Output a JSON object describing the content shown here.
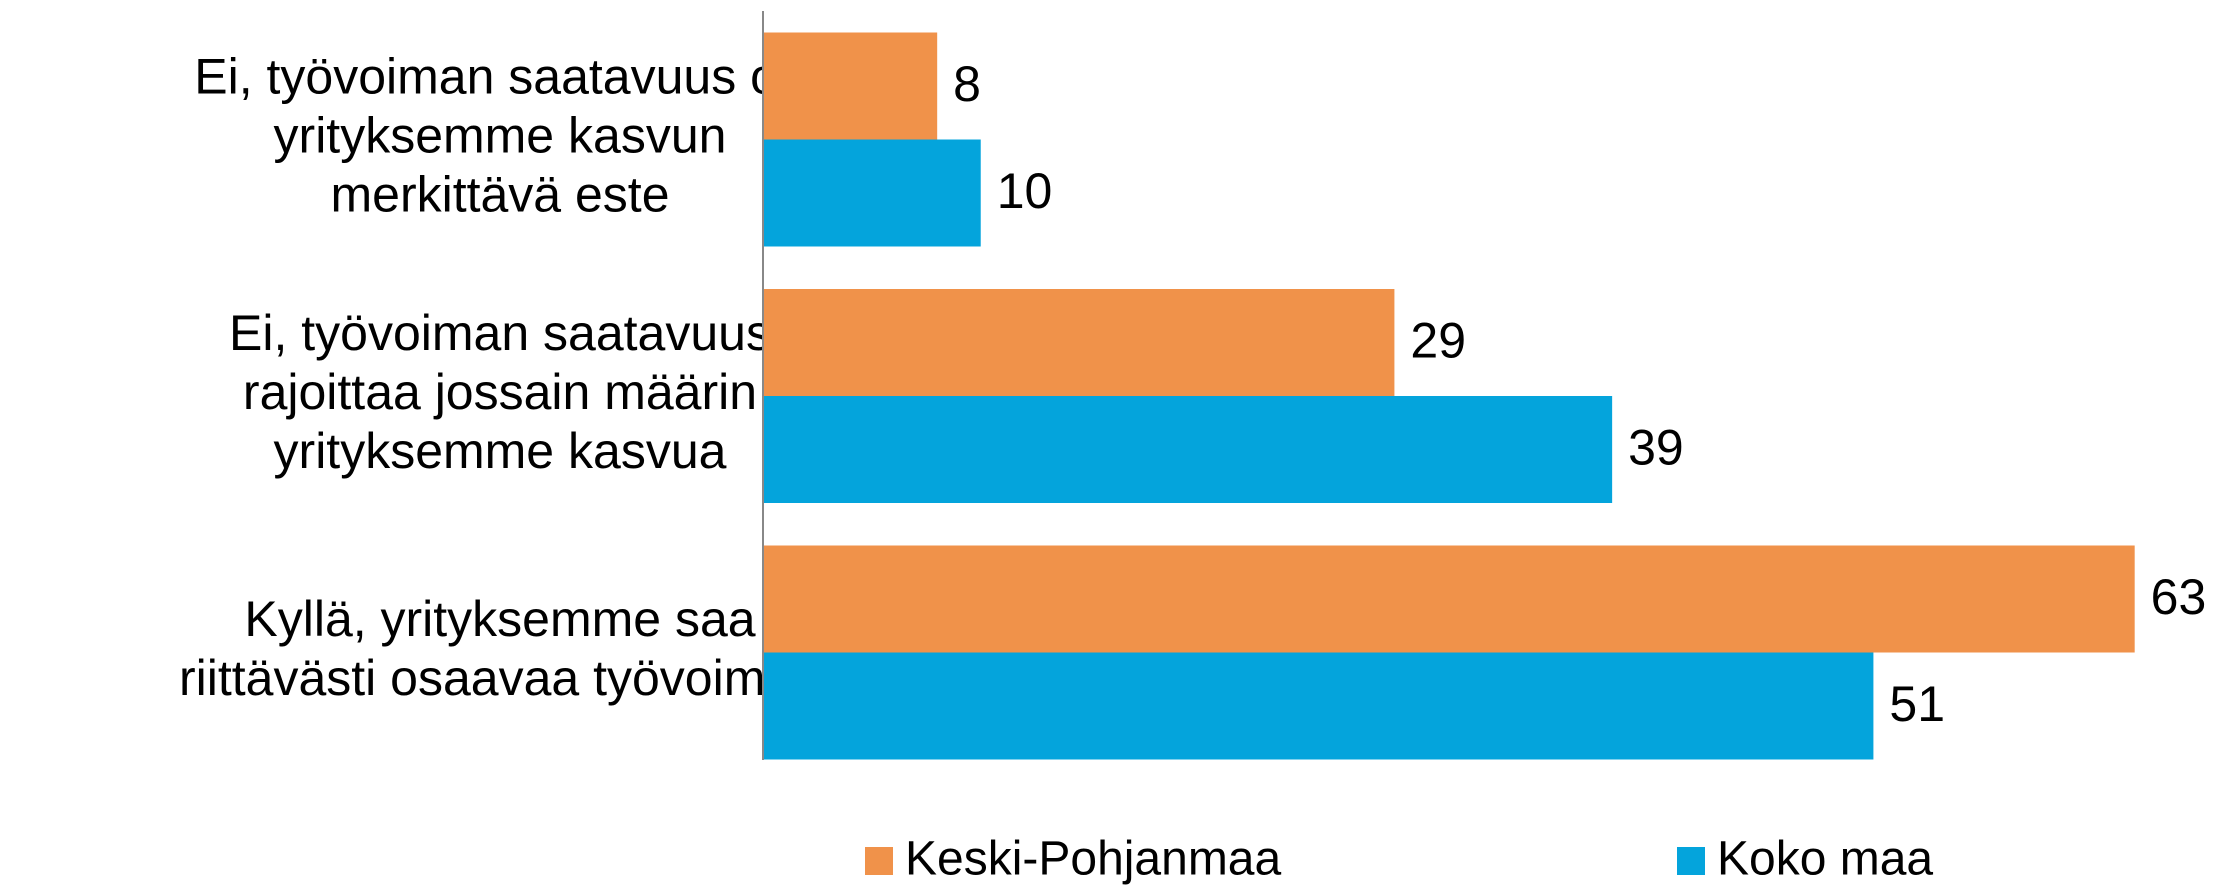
{
  "chart_data": {
    "type": "hbar",
    "categories": [
      [
        "Ei, työvoiman saatavuus on",
        "yrityksemme kasvun",
        "merkittävä este"
      ],
      [
        "Ei, työvoiman saatavuus",
        "rajoittaa jossain määrin",
        "yrityksemme kasvua"
      ],
      [
        "Kyllä, yrityksemme saa",
        "riittävästi osaavaa työvoimaa"
      ]
    ],
    "series": [
      {
        "name": "Keski-Pohjanmaa",
        "color": "#f0924a",
        "values": [
          8,
          29,
          63
        ]
      },
      {
        "name": "Koko maa",
        "color": "#04a4dc",
        "values": [
          10,
          39,
          51
        ]
      }
    ],
    "xlim": [
      0,
      66
    ],
    "grid": false
  }
}
